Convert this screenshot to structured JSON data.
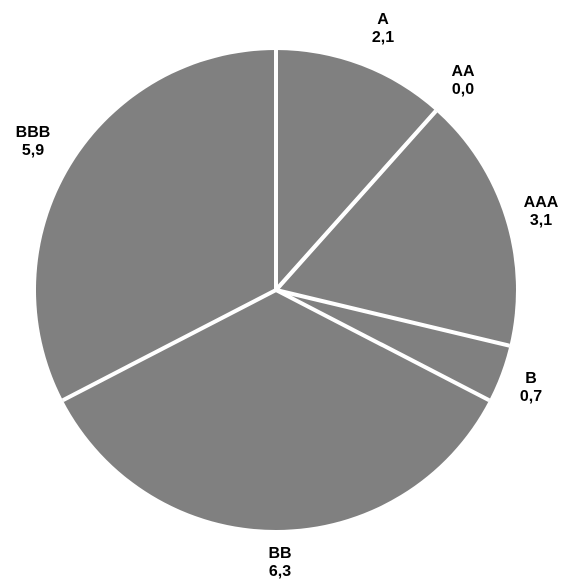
{
  "chart_data": {
    "type": "pie",
    "colors": {
      "slice": "#808080",
      "separator": "#ffffff",
      "text": "#000000"
    },
    "slices": [
      {
        "name": "A",
        "value": 2.1,
        "value_label": "2,1"
      },
      {
        "name": "AA",
        "value": 0.0,
        "value_label": "0,0"
      },
      {
        "name": "AAA",
        "value": 3.1,
        "value_label": "3,1"
      },
      {
        "name": "B",
        "value": 0.7,
        "value_label": "0,7"
      },
      {
        "name": "BB",
        "value": 6.3,
        "value_label": "6,3"
      },
      {
        "name": "BBB",
        "value": 5.9,
        "value_label": "5,9"
      }
    ]
  }
}
